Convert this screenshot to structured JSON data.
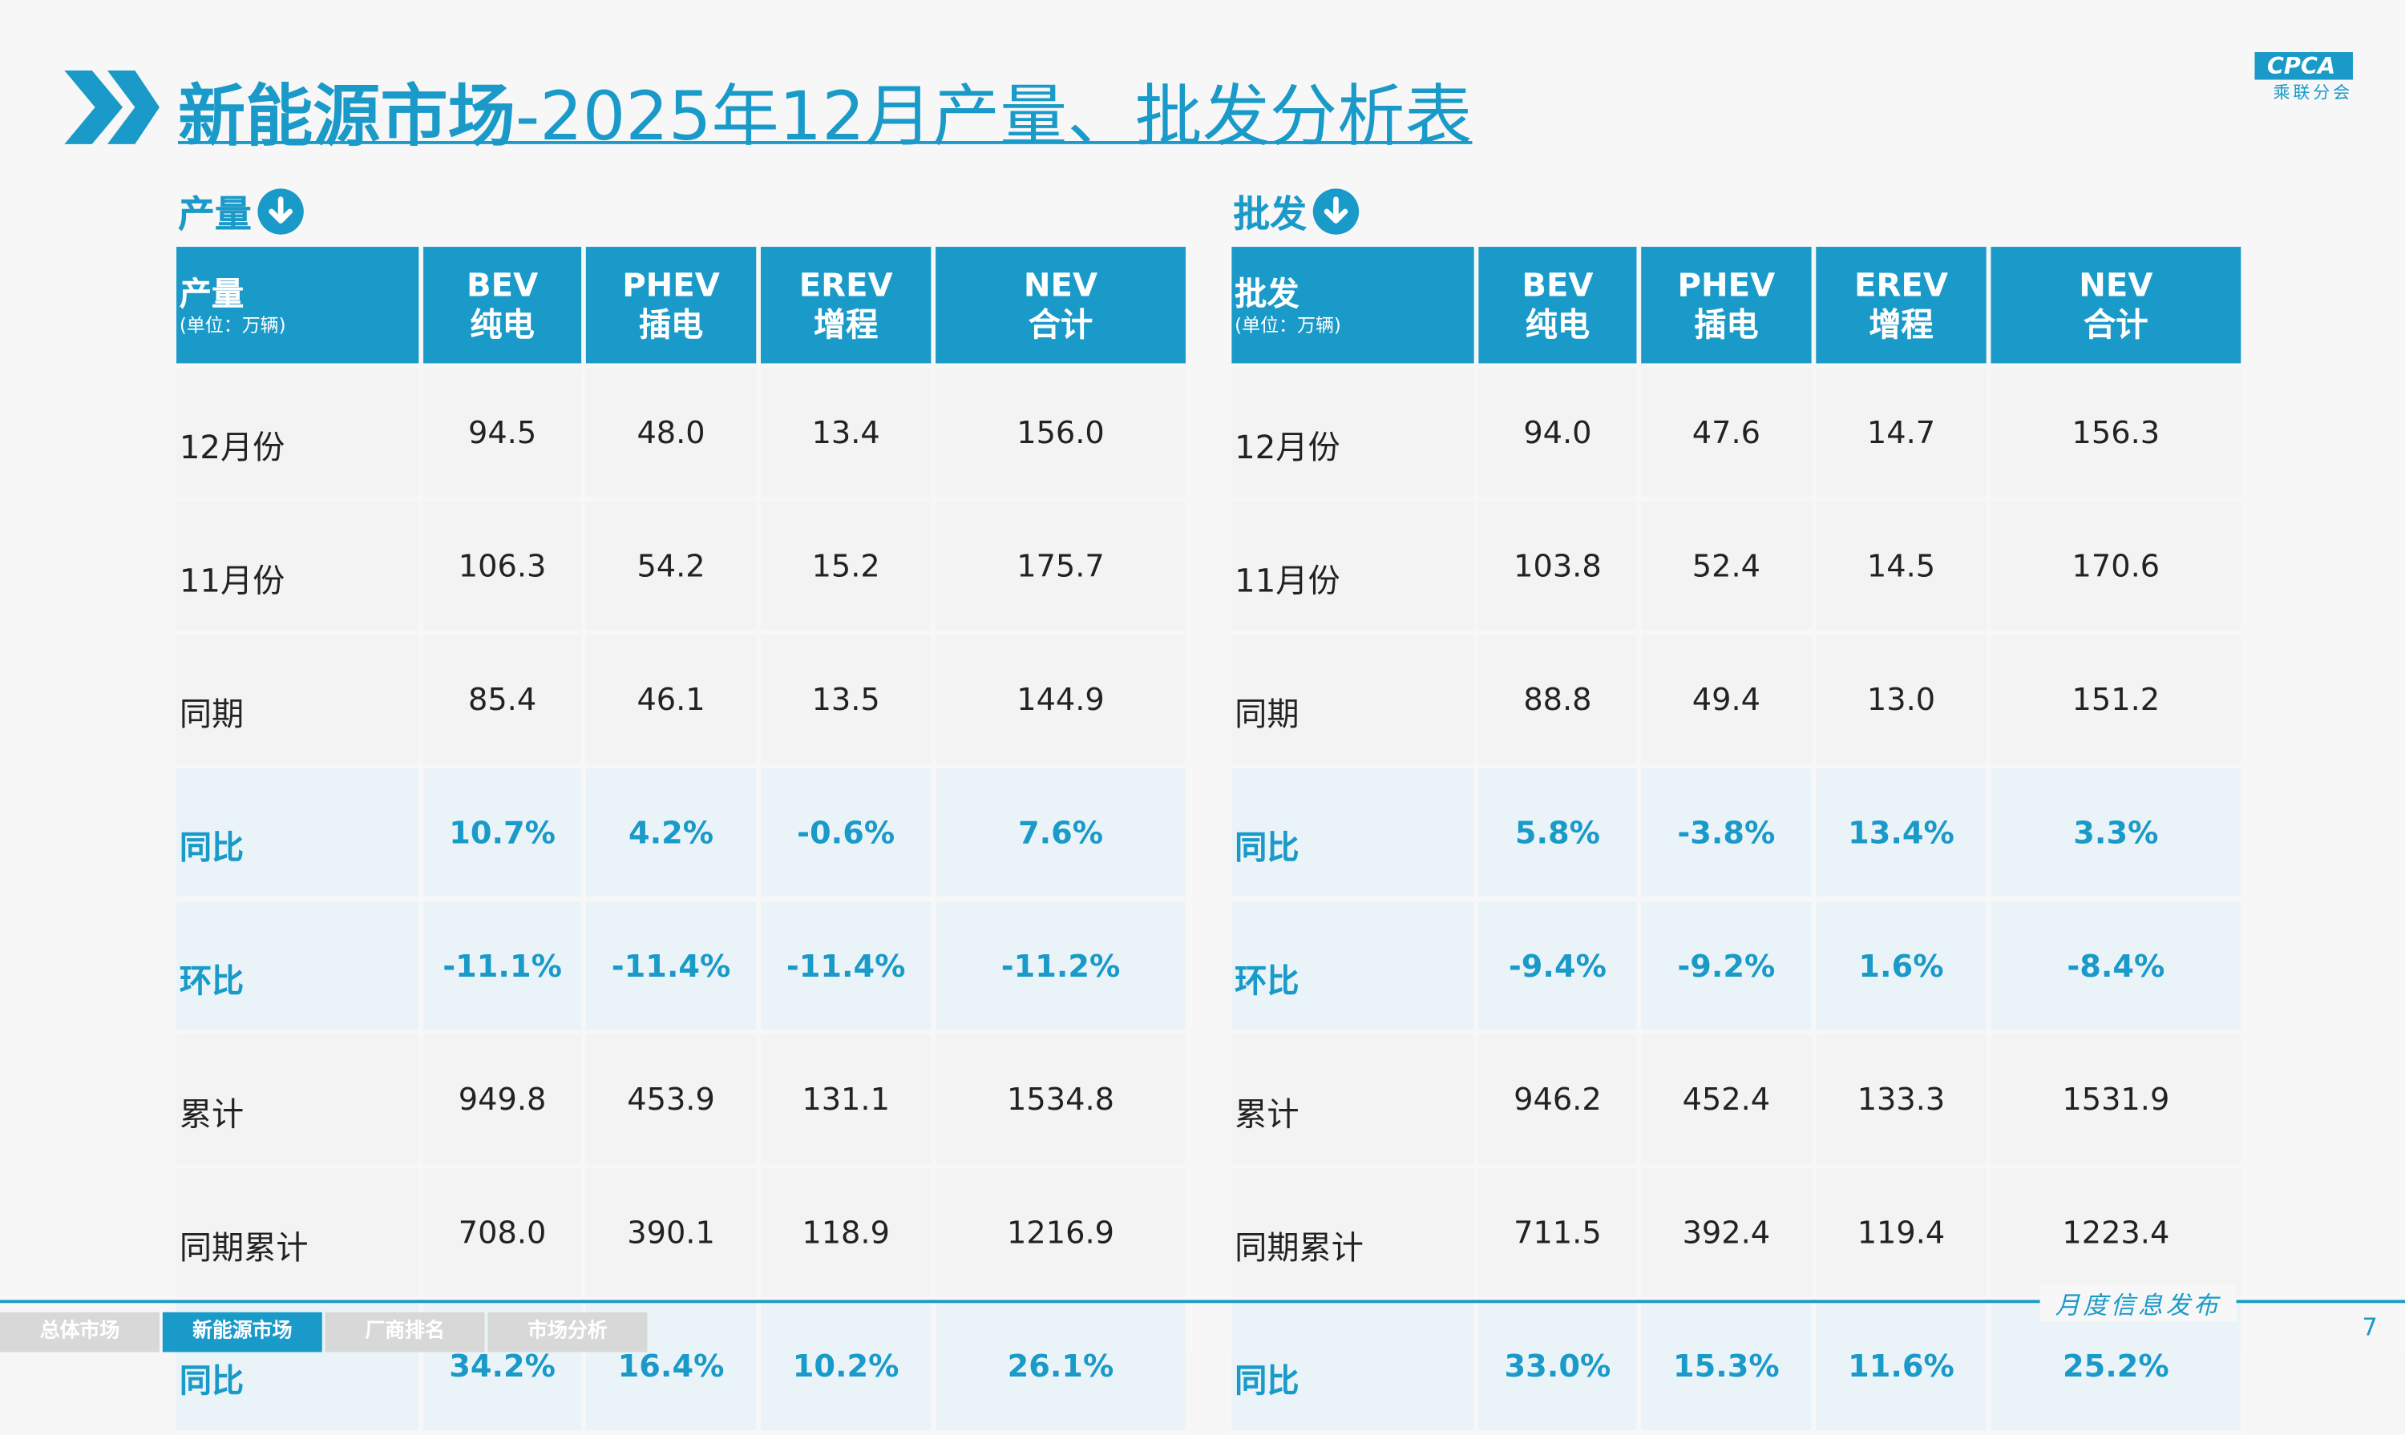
{
  "header": {
    "title_bold": "新能源市场",
    "title_rest": "-2025年12月产量、批发分析表",
    "logo_text": "CPCA",
    "logo_sub": "乘联分会"
  },
  "tables": [
    {
      "section": "产量",
      "header_label": "产量",
      "header_unit": "(单位：万辆)",
      "columns": [
        {
          "code": "BEV",
          "name": "纯电"
        },
        {
          "code": "PHEV",
          "name": "插电"
        },
        {
          "code": "EREV",
          "name": "增程"
        },
        {
          "code": "NEV",
          "name": "合计"
        }
      ],
      "rows": [
        {
          "label": "12月份",
          "values": [
            "94.5",
            "48.0",
            "13.4",
            "156.0"
          ],
          "highlight": false
        },
        {
          "label": "11月份",
          "values": [
            "106.3",
            "54.2",
            "15.2",
            "175.7"
          ],
          "highlight": false
        },
        {
          "label": "同期",
          "values": [
            "85.4",
            "46.1",
            "13.5",
            "144.9"
          ],
          "highlight": false
        },
        {
          "label": "同比",
          "values": [
            "10.7%",
            "4.2%",
            "-0.6%",
            "7.6%"
          ],
          "highlight": true
        },
        {
          "label": "环比",
          "values": [
            "-11.1%",
            "-11.4%",
            "-11.4%",
            "-11.2%"
          ],
          "highlight": true
        },
        {
          "label": "累计",
          "values": [
            "949.8",
            "453.9",
            "131.1",
            "1534.8"
          ],
          "highlight": false
        },
        {
          "label": "同期累计",
          "values": [
            "708.0",
            "390.1",
            "118.9",
            "1216.9"
          ],
          "highlight": false
        },
        {
          "label": "同比",
          "values": [
            "34.2%",
            "16.4%",
            "10.2%",
            "26.1%"
          ],
          "highlight": true
        }
      ]
    },
    {
      "section": "批发",
      "header_label": "批发",
      "header_unit": "(单位：万辆)",
      "columns": [
        {
          "code": "BEV",
          "name": "纯电"
        },
        {
          "code": "PHEV",
          "name": "插电"
        },
        {
          "code": "EREV",
          "name": "增程"
        },
        {
          "code": "NEV",
          "name": "合计"
        }
      ],
      "rows": [
        {
          "label": "12月份",
          "values": [
            "94.0",
            "47.6",
            "14.7",
            "156.3"
          ],
          "highlight": false
        },
        {
          "label": "11月份",
          "values": [
            "103.8",
            "52.4",
            "14.5",
            "170.6"
          ],
          "highlight": false
        },
        {
          "label": "同期",
          "values": [
            "88.8",
            "49.4",
            "13.0",
            "151.2"
          ],
          "highlight": false
        },
        {
          "label": "同比",
          "values": [
            "5.8%",
            "-3.8%",
            "13.4%",
            "3.3%"
          ],
          "highlight": true
        },
        {
          "label": "环比",
          "values": [
            "-9.4%",
            "-9.2%",
            "1.6%",
            "-8.4%"
          ],
          "highlight": true
        },
        {
          "label": "累计",
          "values": [
            "946.2",
            "452.4",
            "133.3",
            "1531.9"
          ],
          "highlight": false
        },
        {
          "label": "同期累计",
          "values": [
            "711.5",
            "392.4",
            "119.4",
            "1223.4"
          ],
          "highlight": false
        },
        {
          "label": "同比",
          "values": [
            "33.0%",
            "15.3%",
            "11.6%",
            "25.2%"
          ],
          "highlight": true
        }
      ]
    }
  ],
  "footer": {
    "tabs": [
      "总体市场",
      "新能源市场",
      "厂商排名",
      "市场分析"
    ],
    "active_tab": 1,
    "release": "月度信息发布",
    "page": "7"
  }
}
